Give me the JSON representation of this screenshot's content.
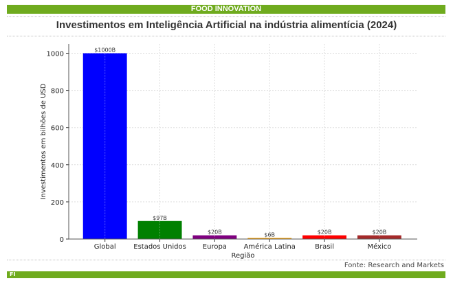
{
  "header": {
    "brand": "FOOD INNOVATION",
    "title": "Investimentos em Inteligência Artificial na indústria alimentícia (2024)"
  },
  "footer": {
    "source": "Fonte: Research and Markets",
    "logo_text": "FI"
  },
  "chart_data": {
    "type": "bar",
    "title": "Investimentos em Inteligência Artificial na indústria alimentícia (2024)",
    "xlabel": "Região",
    "ylabel": "Investimentos em bilhões de USD",
    "categories": [
      "Global",
      "Estados Unidos",
      "Europa",
      "América Latina",
      "Brasil",
      "México"
    ],
    "values": [
      1000,
      97,
      20,
      6,
      20,
      20
    ],
    "data_labels": [
      "$1000B",
      "$97B",
      "$20B",
      "$6B",
      "$20B",
      "$20B"
    ],
    "colors": [
      "#0000ff",
      "#008000",
      "#800080",
      "#ffa500",
      "#ff0000",
      "#a52a2a"
    ],
    "yticks": [
      0,
      200,
      400,
      600,
      800,
      1000
    ],
    "ylim": [
      0,
      1050
    ],
    "grid": true
  }
}
